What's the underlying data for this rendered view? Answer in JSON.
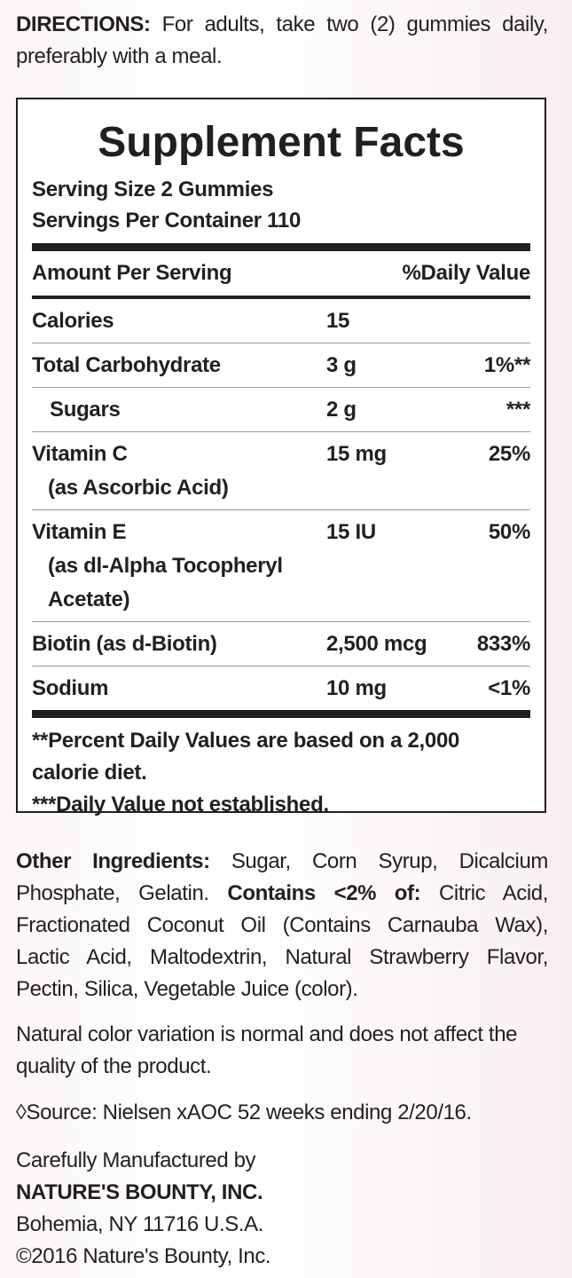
{
  "directions": {
    "label": "DIRECTIONS:",
    "text": "For adults, take two (2) gummies daily, preferably with a meal."
  },
  "facts": {
    "title": "Supplement Facts",
    "serving_size": "Serving Size 2 Gummies",
    "servings_per_container": "Servings Per Container 110",
    "header": {
      "amount": "Amount Per Serving",
      "dv": "%Daily Value"
    },
    "rows": [
      {
        "name": "Calories",
        "amount": "15"
      },
      {
        "name": "Total Carbohydrate",
        "amount": "3 g",
        "dv": "1%**"
      },
      {
        "name": "Sugars",
        "amount": "2 g",
        "dv": "***",
        "indent": true
      },
      {
        "name": "Vitamin C",
        "detail": "(as Ascorbic Acid)",
        "amount": "15 mg",
        "dv": "25%"
      },
      {
        "name": "Vitamin E",
        "detail": "(as dl-Alpha Tocopheryl Acetate)",
        "amount": "15 IU",
        "dv": "50%"
      },
      {
        "name": "Biotin (as d-Biotin)",
        "amount": "2,500 mcg",
        "dv": "833%"
      },
      {
        "name": "Sodium",
        "amount": "10 mg",
        "dv": "<1%"
      }
    ],
    "footnotes": [
      "**Percent Daily Values are based on a 2,000 calorie diet.",
      "***Daily Value not established."
    ]
  },
  "other_ingredients": [
    {
      "text": "Other Ingredients:",
      "bold": true
    },
    {
      "text": "Sugar, Corn Syrup, Dicalcium Phosphate, Gelatin."
    },
    {
      "text": "Contains <2% of:",
      "bold": true
    },
    {
      "text": "Citric Acid, Fractionated Coconut Oil (Contains Carnauba Wax), Lactic Acid, Maltodextrin, Natural Strawberry Flavor, Pectin, Silica, Vegetable Juice (color)."
    }
  ],
  "color_note": "Natural color variation is normal and does not affect the quality of the product.",
  "source": "◊Source: Nielsen xAOC 52 weeks ending 2/20/16.",
  "manufacturer": {
    "intro": "Carefully Manufactured by",
    "name": "NATURE'S BOUNTY, INC.",
    "address": "Bohemia, NY 11716 U.S.A.",
    "copyright": "©2016 Nature's Bounty, Inc."
  }
}
